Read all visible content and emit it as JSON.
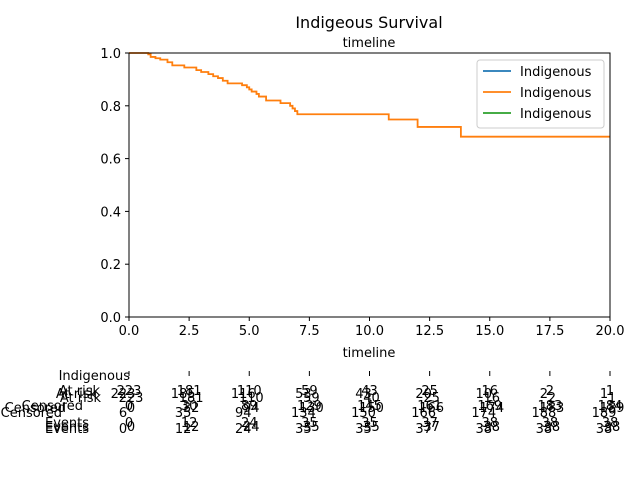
{
  "chart_data": {
    "type": "line",
    "title": "Indigeous Survival",
    "top_axis_label": "timeline",
    "xlabel": "timeline",
    "ylabel": "",
    "xlim": [
      0,
      20
    ],
    "ylim": [
      0,
      1
    ],
    "xticks": [
      "0.0",
      "2.5",
      "5.0",
      "7.5",
      "10.0",
      "12.5",
      "15.0",
      "17.5",
      "20.0"
    ],
    "yticks": [
      "0.0",
      "0.2",
      "0.4",
      "0.6",
      "0.8",
      "1.0"
    ],
    "grid": false,
    "legend_position": "top-right",
    "series": [
      {
        "name": "Indigenous",
        "color": "#1f77b4",
        "points": []
      },
      {
        "name": "Indigenous",
        "color": "#ff7f0e",
        "points": [
          [
            0,
            1.0
          ],
          [
            0.8,
            0.995
          ],
          [
            0.9,
            0.985
          ],
          [
            1.1,
            0.98
          ],
          [
            1.3,
            0.975
          ],
          [
            1.6,
            0.965
          ],
          [
            1.8,
            0.953
          ],
          [
            2.3,
            0.945
          ],
          [
            2.8,
            0.935
          ],
          [
            3.0,
            0.928
          ],
          [
            3.3,
            0.92
          ],
          [
            3.5,
            0.912
          ],
          [
            3.7,
            0.905
          ],
          [
            3.9,
            0.895
          ],
          [
            4.1,
            0.885
          ],
          [
            4.7,
            0.878
          ],
          [
            4.9,
            0.87
          ],
          [
            5.0,
            0.862
          ],
          [
            5.1,
            0.854
          ],
          [
            5.3,
            0.845
          ],
          [
            5.4,
            0.835
          ],
          [
            5.7,
            0.82
          ],
          [
            6.3,
            0.81
          ],
          [
            6.7,
            0.8
          ],
          [
            6.8,
            0.79
          ],
          [
            6.9,
            0.78
          ],
          [
            7.0,
            0.768
          ],
          [
            10.8,
            0.748
          ],
          [
            12.0,
            0.72
          ],
          [
            13.8,
            0.683
          ],
          [
            20.0,
            0.683
          ]
        ]
      },
      {
        "name": "Indigenous",
        "color": "#2ca02c",
        "points": []
      }
    ],
    "at_risk_table": {
      "group_label": "Indigenous",
      "tick_times": [
        0,
        2.5,
        5,
        7.5,
        10,
        12.5,
        15,
        17.5,
        20
      ],
      "layers": [
        {
          "rows": [
            {
              "label": "At risk",
              "values": [
                "223",
                "181",
                "110",
                "59",
                "43",
                "25",
                "16",
                "2",
                "1"
              ]
            },
            {
              "label": "Censored",
              "values": [
                "0",
                "30",
                "89",
                "129",
                "145",
                "161",
                "169",
                "183",
                "184"
              ]
            },
            {
              "label": "Events",
              "values": [
                "0",
                "12",
                "24",
                "35",
                "35",
                "37",
                "38",
                "38",
                "38"
              ]
            }
          ]
        },
        {
          "rows": [
            {
              "label": "At risk",
              "values": [
                "223",
                "185",
                "116",
                "53",
                "43",
                "20",
                "10",
                "2",
                "1"
              ]
            },
            {
              "label": "Censored",
              "values": [
                "6",
                "35",
                "94",
                "134",
                "150",
                "166",
                "174",
                "188",
                "189"
              ]
            },
            {
              "label": "Events",
              "values": [
                "0",
                "12",
                "24",
                "35",
                "35",
                "37",
                "38",
                "38",
                "38"
              ]
            }
          ]
        },
        {
          "rows": [
            {
              "label": "At risk",
              "values": [
                "223",
                "181",
                "110",
                "59",
                "40",
                "25",
                "16",
                "2",
                "1"
              ]
            },
            {
              "label": "Censored",
              "values": [
                "0",
                "32",
                "94",
                "130",
                "150",
                "166",
                "174",
                "183",
                "189"
              ]
            },
            {
              "label": "Events",
              "values": [
                "0",
                "12",
                "24",
                "35",
                "35",
                "37",
                "38",
                "38",
                "38"
              ]
            }
          ]
        }
      ]
    }
  }
}
